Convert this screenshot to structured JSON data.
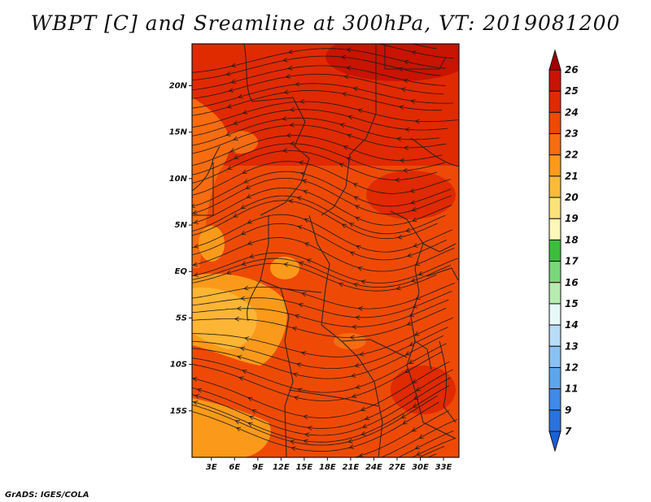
{
  "title": "WBPT [C] and Sreamline at 300hPa, VT: 2019081200",
  "credit": "GrADS: IGES/COLA",
  "map": {
    "lat_labels": [
      "20N",
      "15N",
      "10N",
      "5N",
      "EQ",
      "5S",
      "10S",
      "15S"
    ],
    "lat_values": [
      20,
      15,
      10,
      5,
      0,
      -5,
      -10,
      -15
    ],
    "lon_labels": [
      "3E",
      "6E",
      "9E",
      "12E",
      "15E",
      "18E",
      "21E",
      "24E",
      "27E",
      "30E",
      "33E"
    ],
    "lon_values": [
      3,
      6,
      9,
      12,
      15,
      18,
      21,
      24,
      27,
      30,
      33
    ],
    "lon_range": [
      0.5,
      35
    ],
    "lat_range": [
      -20,
      24.5
    ]
  },
  "colorbar": {
    "labels": [
      "26",
      "25",
      "24",
      "23",
      "22",
      "21",
      "20",
      "19",
      "18",
      "17",
      "16",
      "15",
      "14",
      "13",
      "12",
      "11",
      "9",
      "7"
    ],
    "colors": [
      "#a00000",
      "#c81400",
      "#e02a00",
      "#ee4a06",
      "#f76c10",
      "#fb9a1a",
      "#fcba3a",
      "#fde27a",
      "#fdf8b8",
      "#3cbe3c",
      "#78d878",
      "#b6ecb0",
      "#e6f8f8",
      "#b6dcf8",
      "#88c2f4",
      "#5ca6ee",
      "#3e8ae8",
      "#2a72de",
      "#1a60d8"
    ]
  }
}
